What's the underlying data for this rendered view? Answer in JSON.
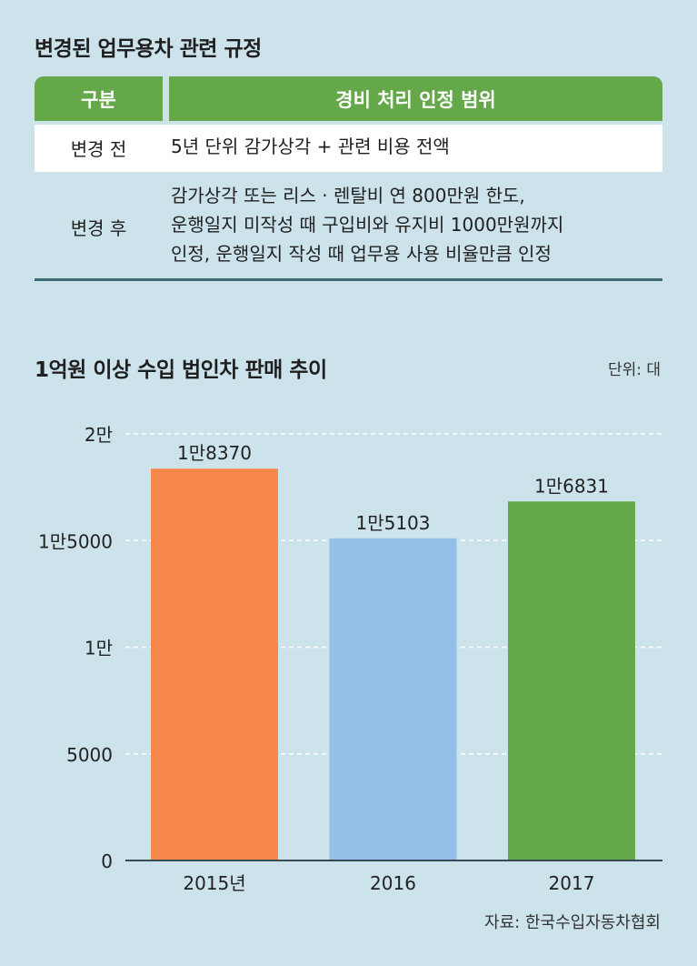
{
  "regulation": {
    "title": "변경된 업무용차 관련 규정",
    "headers": [
      "구분",
      "경비 처리 인정 범위"
    ],
    "rows": [
      {
        "label": "변경 전",
        "lines": [
          "5년 단위 감가상각 + 관련 비용 전액"
        ]
      },
      {
        "label": "변경 후",
        "lines": [
          "감가상각 또는 리스 · 렌탈비 연 800만원 한도,",
          "운행일지 미작성 때 구입비와 유지비 1000만원까지",
          "인정, 운행일지 작성 때 업무용 사용 비율만큼 인정"
        ]
      }
    ],
    "colors": {
      "header_bg": "#65a84a",
      "row_bg": "#ffffff"
    }
  },
  "chart_data": {
    "type": "bar",
    "title": "1억원 이상 수입 법인차 판매 추이",
    "unit_label": "단위: 대",
    "categories": [
      "2015년",
      "2016",
      "2017"
    ],
    "values": [
      18370,
      15103,
      16831
    ],
    "value_labels": [
      "1만8370",
      "1만5103",
      "1만6831"
    ],
    "bar_colors": [
      "#f5884a",
      "#93bfe8",
      "#64a84a"
    ],
    "ylim": [
      0,
      20000
    ],
    "yticks": [
      {
        "value": 0,
        "label": "0"
      },
      {
        "value": 5000,
        "label": "5000"
      },
      {
        "value": 10000,
        "label": "1만"
      },
      {
        "value": 15000,
        "label": "1만5000"
      },
      {
        "value": 20000,
        "label": "2만"
      }
    ],
    "grid": true,
    "xlabel": "",
    "ylabel": ""
  },
  "source": "자료: 한국수입자동차협회"
}
